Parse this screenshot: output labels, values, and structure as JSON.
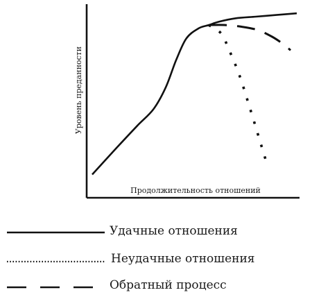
{
  "chart_data": {
    "type": "line",
    "title": "",
    "xlabel": "Продолжительность отношений",
    "ylabel": "Уровень преданности",
    "xlim": [
      0,
      100
    ],
    "ylim": [
      0,
      100
    ],
    "grid": false,
    "legend": "bottom",
    "series": [
      {
        "name": "Удачные отношения",
        "style": "solid",
        "x": [
          0,
          12,
          22,
          30,
          36,
          41,
          46,
          52,
          57,
          62,
          70,
          80,
          90,
          100
        ],
        "y": [
          6,
          22,
          35,
          45,
          58,
          74,
          87,
          93,
          95,
          97,
          99,
          100,
          101,
          102
        ]
      },
      {
        "name": "Неудачные отношения",
        "style": "dotted",
        "x": [
          57,
          63,
          67,
          72,
          77,
          82,
          86
        ],
        "y": [
          95,
          90,
          80,
          65,
          46,
          26,
          10
        ]
      },
      {
        "name": "Обратный процесс",
        "style": "dashed",
        "x": [
          57,
          65,
          73,
          81,
          88,
          93,
          97
        ],
        "y": [
          95,
          95,
          94,
          92,
          88,
          84,
          80
        ]
      }
    ]
  }
}
